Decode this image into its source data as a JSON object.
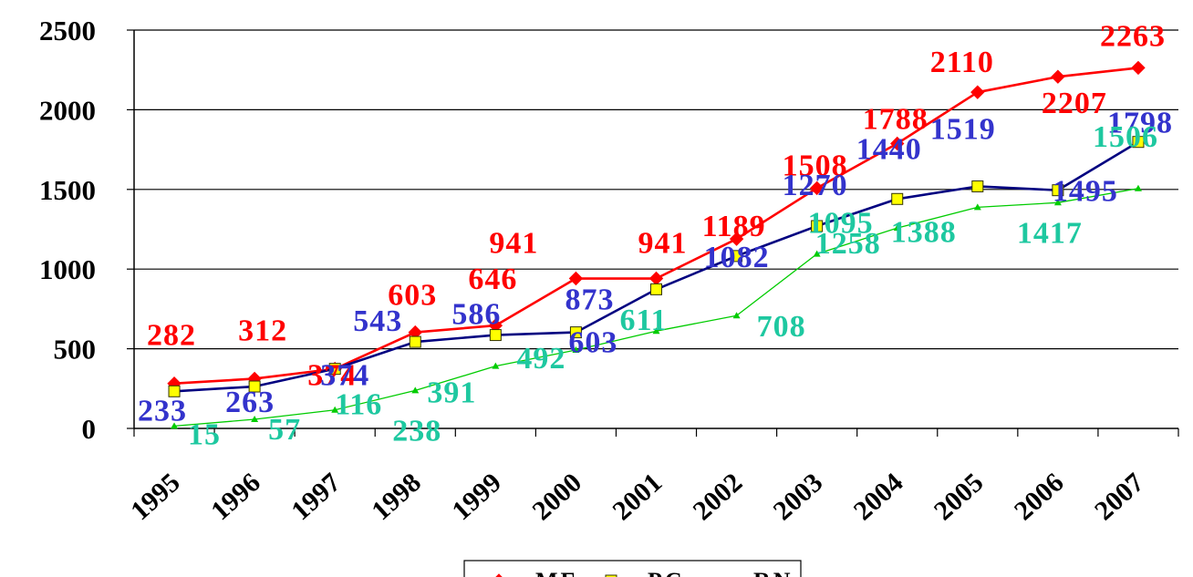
{
  "chart_data": {
    "type": "line",
    "title": "",
    "xlabel": "",
    "ylabel": "",
    "categories": [
      "1995",
      "1996",
      "1997",
      "1998",
      "1999",
      "2000",
      "2001",
      "2002",
      "2003",
      "2004",
      "2005",
      "2006",
      "2007"
    ],
    "ylim": [
      0,
      2500
    ],
    "yticks": [
      "0",
      "500",
      "1000",
      "1500",
      "2000",
      "2500"
    ],
    "grid": "horizontal",
    "legend_position": "bottom",
    "series": [
      {
        "name": "MF",
        "color": "#ff0000",
        "marker": "diamond",
        "values": [
          282,
          312,
          374,
          603,
          646,
          941,
          941,
          1189,
          1508,
          1788,
          2110,
          2207,
          2263
        ],
        "labels": [
          "282",
          "312",
          "374",
          "603",
          "646",
          "941",
          "941",
          "1189",
          "1508",
          "1788",
          "2110",
          "2207",
          "2263"
        ]
      },
      {
        "name": "PC",
        "color": "#000080",
        "label_color": "#3333cc",
        "marker": "square",
        "values": [
          233,
          263,
          374,
          543,
          586,
          603,
          873,
          1082,
          1270,
          1440,
          1519,
          1495,
          1798
        ],
        "labels": [
          "233",
          "263",
          "374",
          "543",
          "586",
          "603",
          "873",
          "1082",
          "1270",
          "1440",
          "1519",
          "1495",
          "1798"
        ]
      },
      {
        "name": "RN",
        "color": "#00cc00",
        "label_color": "#1ec8a0",
        "marker": "triangle",
        "values": [
          15,
          57,
          116,
          238,
          391,
          492,
          611,
          708,
          1095,
          1258,
          1388,
          1417,
          1506
        ],
        "labels": [
          "15",
          "57",
          "116",
          "238",
          "391",
          "492",
          "611",
          "708",
          "1095",
          "1258",
          "1388",
          "1417",
          "1506"
        ]
      }
    ]
  }
}
